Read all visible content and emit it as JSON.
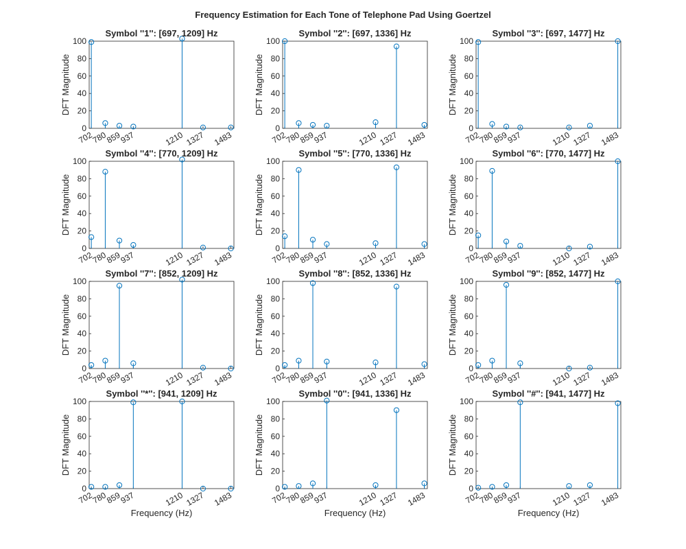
{
  "figure": {
    "title": "Frequency Estimation for Each Tone of Telephone Pad Using Goertzel",
    "series_color": "#0072BD"
  },
  "chart_data": [
    {
      "type": "stem",
      "title": "Symbol ''1'': [697, 1209] Hz",
      "ylabel": "DFT Magnitude",
      "xlabel": "",
      "xlim": [
        690,
        1500
      ],
      "ylim": [
        0,
        100
      ],
      "xticks": [
        702,
        780,
        859,
        937,
        1210,
        1327,
        1483
      ],
      "yticks": [
        0,
        20,
        40,
        60,
        80,
        100
      ],
      "x": [
        702,
        780,
        859,
        937,
        1210,
        1327,
        1483
      ],
      "values": [
        99,
        6,
        3,
        2,
        103,
        1,
        1
      ]
    },
    {
      "type": "stem",
      "title": "Symbol ''2'': [697, 1336] Hz",
      "ylabel": "DFT Magnitude",
      "xlabel": "",
      "xlim": [
        690,
        1500
      ],
      "ylim": [
        0,
        100
      ],
      "xticks": [
        702,
        780,
        859,
        937,
        1210,
        1327,
        1483
      ],
      "yticks": [
        0,
        20,
        40,
        60,
        80,
        100
      ],
      "x": [
        702,
        780,
        859,
        937,
        1210,
        1327,
        1483
      ],
      "values": [
        100,
        6,
        4,
        3,
        7,
        94,
        4
      ]
    },
    {
      "type": "stem",
      "title": "Symbol ''3'': [697, 1477] Hz",
      "ylabel": "DFT Magnitude",
      "xlabel": "",
      "xlim": [
        690,
        1500
      ],
      "ylim": [
        0,
        100
      ],
      "xticks": [
        702,
        780,
        859,
        937,
        1210,
        1327,
        1483
      ],
      "yticks": [
        0,
        20,
        40,
        60,
        80,
        100
      ],
      "x": [
        702,
        780,
        859,
        937,
        1210,
        1327,
        1483
      ],
      "values": [
        99,
        5,
        2,
        1,
        1,
        3,
        100
      ]
    },
    {
      "type": "stem",
      "title": "Symbol ''4'': [770, 1209] Hz",
      "ylabel": "DFT Magnitude",
      "xlabel": "",
      "xlim": [
        690,
        1500
      ],
      "ylim": [
        0,
        100
      ],
      "xticks": [
        702,
        780,
        859,
        937,
        1210,
        1327,
        1483
      ],
      "yticks": [
        0,
        20,
        40,
        60,
        80,
        100
      ],
      "x": [
        702,
        780,
        859,
        937,
        1210,
        1327,
        1483
      ],
      "values": [
        13,
        88,
        9,
        4,
        102,
        1,
        0
      ]
    },
    {
      "type": "stem",
      "title": "Symbol ''5'': [770, 1336] Hz",
      "ylabel": "DFT Magnitude",
      "xlabel": "",
      "xlim": [
        690,
        1500
      ],
      "ylim": [
        0,
        100
      ],
      "xticks": [
        702,
        780,
        859,
        937,
        1210,
        1327,
        1483
      ],
      "yticks": [
        0,
        20,
        40,
        60,
        80,
        100
      ],
      "x": [
        702,
        780,
        859,
        937,
        1210,
        1327,
        1483
      ],
      "values": [
        14,
        90,
        10,
        5,
        6,
        93,
        5
      ]
    },
    {
      "type": "stem",
      "title": "Symbol ''6'': [770, 1477] Hz",
      "ylabel": "DFT Magnitude",
      "xlabel": "",
      "xlim": [
        690,
        1500
      ],
      "ylim": [
        0,
        100
      ],
      "xticks": [
        702,
        780,
        859,
        937,
        1210,
        1327,
        1483
      ],
      "yticks": [
        0,
        20,
        40,
        60,
        80,
        100
      ],
      "x": [
        702,
        780,
        859,
        937,
        1210,
        1327,
        1483
      ],
      "values": [
        15,
        89,
        8,
        3,
        0,
        2,
        100
      ]
    },
    {
      "type": "stem",
      "title": "Symbol ''7'': [852, 1209] Hz",
      "ylabel": "DFT Magnitude",
      "xlabel": "",
      "xlim": [
        690,
        1500
      ],
      "ylim": [
        0,
        100
      ],
      "xticks": [
        702,
        780,
        859,
        937,
        1210,
        1327,
        1483
      ],
      "yticks": [
        0,
        20,
        40,
        60,
        80,
        100
      ],
      "x": [
        702,
        780,
        859,
        937,
        1210,
        1327,
        1483
      ],
      "values": [
        4,
        9,
        95,
        6,
        102,
        1,
        0
      ]
    },
    {
      "type": "stem",
      "title": "Symbol ''8'': [852, 1336] Hz",
      "ylabel": "DFT Magnitude",
      "xlabel": "",
      "xlim": [
        690,
        1500
      ],
      "ylim": [
        0,
        100
      ],
      "xticks": [
        702,
        780,
        859,
        937,
        1210,
        1327,
        1483
      ],
      "yticks": [
        0,
        20,
        40,
        60,
        80,
        100
      ],
      "x": [
        702,
        780,
        859,
        937,
        1210,
        1327,
        1483
      ],
      "values": [
        4,
        9,
        98,
        8,
        7,
        94,
        5
      ]
    },
    {
      "type": "stem",
      "title": "Symbol ''9'': [852, 1477] Hz",
      "ylabel": "DFT Magnitude",
      "xlabel": "",
      "xlim": [
        690,
        1500
      ],
      "ylim": [
        0,
        100
      ],
      "xticks": [
        702,
        780,
        859,
        937,
        1210,
        1327,
        1483
      ],
      "yticks": [
        0,
        20,
        40,
        60,
        80,
        100
      ],
      "x": [
        702,
        780,
        859,
        937,
        1210,
        1327,
        1483
      ],
      "values": [
        4,
        9,
        96,
        6,
        0,
        1,
        100
      ]
    },
    {
      "type": "stem",
      "title": "Symbol ''*'': [941, 1209] Hz",
      "ylabel": "DFT Magnitude",
      "xlabel": "Frequency (Hz)",
      "xlim": [
        690,
        1500
      ],
      "ylim": [
        0,
        100
      ],
      "xticks": [
        702,
        780,
        859,
        937,
        1210,
        1327,
        1483
      ],
      "yticks": [
        0,
        20,
        40,
        60,
        80,
        100
      ],
      "x": [
        702,
        780,
        859,
        937,
        1210,
        1327,
        1483
      ],
      "values": [
        2,
        2,
        4,
        99,
        100,
        0,
        0
      ]
    },
    {
      "type": "stem",
      "title": "Symbol ''0'': [941, 1336] Hz",
      "ylabel": "DFT Magnitude",
      "xlabel": "Frequency (Hz)",
      "xlim": [
        690,
        1500
      ],
      "ylim": [
        0,
        100
      ],
      "xticks": [
        702,
        780,
        859,
        937,
        1210,
        1327,
        1483
      ],
      "yticks": [
        0,
        20,
        40,
        60,
        80,
        100
      ],
      "x": [
        702,
        780,
        859,
        937,
        1210,
        1327,
        1483
      ],
      "values": [
        2,
        3,
        6,
        101,
        4,
        90,
        6
      ]
    },
    {
      "type": "stem",
      "title": "Symbol ''#'': [941, 1477] Hz",
      "ylabel": "DFT Magnitude",
      "xlabel": "Frequency (Hz)",
      "xlim": [
        690,
        1500
      ],
      "ylim": [
        0,
        100
      ],
      "xticks": [
        702,
        780,
        859,
        937,
        1210,
        1327,
        1483
      ],
      "yticks": [
        0,
        20,
        40,
        60,
        80,
        100
      ],
      "x": [
        702,
        780,
        859,
        937,
        1210,
        1327,
        1483
      ],
      "values": [
        1,
        2,
        4,
        99,
        3,
        4,
        98
      ]
    }
  ]
}
